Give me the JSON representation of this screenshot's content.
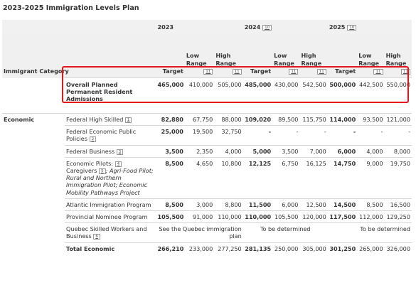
{
  "title": "2023-2025 Immigration Levels Plan",
  "header": {
    "category_label": "Immigrant Category",
    "years": [
      {
        "year": "2023",
        "ref": ""
      },
      {
        "year": "2024",
        "ref": "10"
      },
      {
        "year": "2025",
        "ref": "10"
      }
    ],
    "target_label": "Target",
    "low_label": "Low Range",
    "high_label": "High Range",
    "range_ref": "11"
  },
  "overall": {
    "label": "Overall Planned Permanent Resident Admissions",
    "values": [
      "465,000",
      "410,000",
      "505,000",
      "485,000",
      "430,000",
      "542,500",
      "500,000",
      "442,500",
      "550,000"
    ]
  },
  "economic": {
    "category": "Economic",
    "rows": [
      {
        "label": "Federal High Skilled",
        "ref": "1",
        "values": [
          "82,880",
          "67,750",
          "88,000",
          "109,020",
          "89,500",
          "115,750",
          "114,000",
          "93,500",
          "121,000"
        ]
      },
      {
        "label": "Federal Economic Public Policies",
        "ref": "2",
        "values": [
          "25,000",
          "19,500",
          "32,750",
          "-",
          "-",
          "-",
          "-",
          "-",
          "-"
        ]
      },
      {
        "label": "Federal Business",
        "ref": "3",
        "values": [
          "3,500",
          "2,350",
          "4,000",
          "5,000",
          "3,500",
          "7,000",
          "6,000",
          "4,000",
          "8,000"
        ]
      },
      {
        "label": "Economic Pilots:",
        "ref": "4",
        "label2": "Caregivers",
        "ref2": "5",
        "label3": "; Agri-Food Pilot; Rural and Northern Immigration Pilot; Economic Mobility Pathways Project",
        "values": [
          "8,500",
          "4,650",
          "10,800",
          "12,125",
          "6,750",
          "16,125",
          "14,750",
          "9,000",
          "19,750"
        ]
      },
      {
        "label": "Atlantic Immigration Program",
        "values": [
          "8,500",
          "3,000",
          "8,800",
          "11,500",
          "6,000",
          "12,500",
          "14,500",
          "8,500",
          "16,500"
        ]
      },
      {
        "label": "Provincial Nominee Program",
        "values": [
          "105,500",
          "91,000",
          "110,000",
          "110,000",
          "105,500",
          "120,000",
          "117,500",
          "112,000",
          "129,250"
        ]
      },
      {
        "label": "Quebec Skilled Workers and Business",
        "ref": "6",
        "note_2023": "See the Quebec immigration plan",
        "note_2024": "To be determined",
        "note_2025": "To be determined"
      }
    ],
    "total": {
      "label": "Total Economic",
      "values": [
        "266,210",
        "233,000",
        "277,250",
        "281,135",
        "250,000",
        "305,000",
        "301,250",
        "265,000",
        "326,000"
      ]
    }
  },
  "colors": {
    "highlight": "#e4161b",
    "header_bg": "#f0f0f0"
  }
}
